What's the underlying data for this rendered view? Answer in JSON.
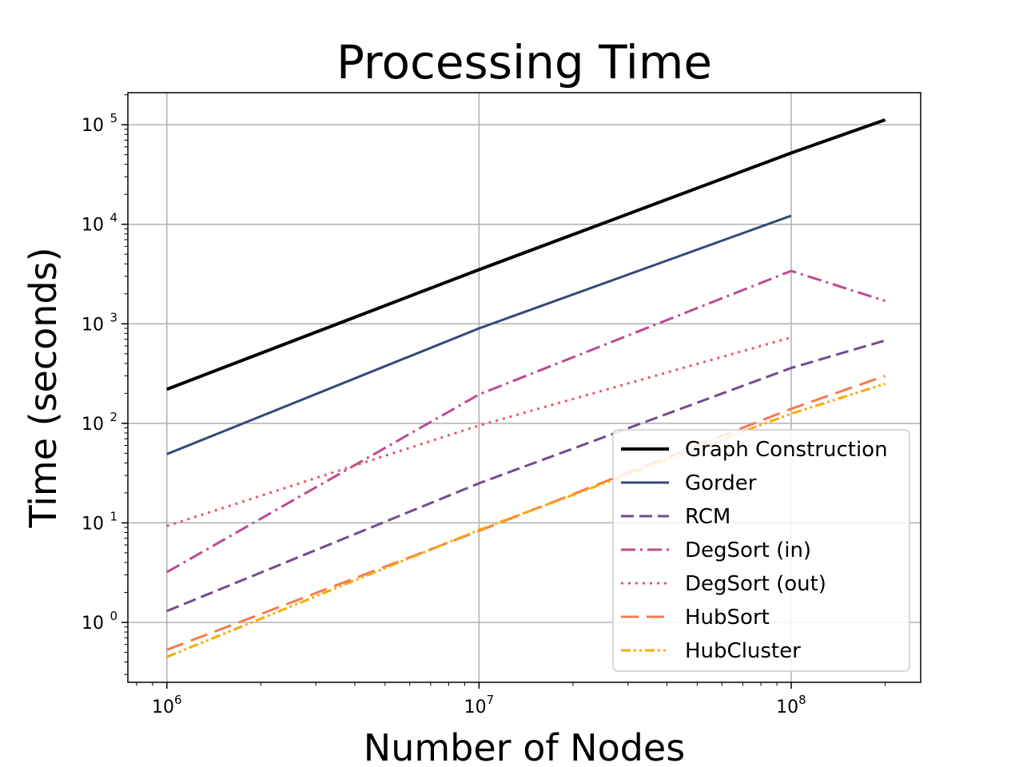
{
  "chart_data": {
    "type": "line",
    "title": "Processing Time",
    "xlabel": "Number of Nodes",
    "ylabel": "Time (seconds)",
    "xscale": "log",
    "yscale": "log",
    "xlim": [
      750000,
      260000000
    ],
    "ylim": [
      0.25,
      210000
    ],
    "grid": true,
    "legend_position": "lower-right",
    "x_ticks": [
      {
        "base": "10",
        "exp": "6",
        "value": 1000000
      },
      {
        "base": "10",
        "exp": "7",
        "value": 10000000
      },
      {
        "base": "10",
        "exp": "8",
        "value": 100000000
      }
    ],
    "y_ticks": [
      {
        "base": "10",
        "exp": "0",
        "value": 1
      },
      {
        "base": "10",
        "exp": "1",
        "value": 10
      },
      {
        "base": "10",
        "exp": "2",
        "value": 100
      },
      {
        "base": "10",
        "exp": "3",
        "value": 1000
      },
      {
        "base": "10",
        "exp": "4",
        "value": 10000
      },
      {
        "base": "10",
        "exp": "5",
        "value": 100000
      }
    ],
    "series": [
      {
        "name": "Graph Construction",
        "color": "#000000",
        "dash": "solid",
        "width": 4,
        "x": [
          1000000,
          10000000,
          100000000,
          200000000
        ],
        "y": [
          220,
          3500,
          52000,
          112000
        ]
      },
      {
        "name": "Gorder",
        "color": "#33477a",
        "dash": "solid",
        "width": 3,
        "x": [
          1000000,
          10000000,
          100000000
        ],
        "y": [
          49,
          900,
          12200
        ]
      },
      {
        "name": "RCM",
        "color": "#734b8f",
        "dash": "16,7",
        "width": 3,
        "x": [
          1000000,
          10000000,
          100000000,
          200000000
        ],
        "y": [
          1.3,
          25,
          360,
          680
        ]
      },
      {
        "name": "DegSort (in)",
        "color": "#bd4a8f",
        "dash": "18,6,3,6",
        "width": 3,
        "x": [
          1000000,
          10000000,
          100000000,
          200000000
        ],
        "y": [
          3.2,
          195,
          3400,
          1700
        ]
      },
      {
        "name": "DegSort (out)",
        "color": "#eb5469",
        "dash": "3,6",
        "width": 3,
        "x": [
          1000000,
          10000000,
          100000000
        ],
        "y": [
          9.3,
          95,
          730
        ]
      },
      {
        "name": "HubSort",
        "color": "#f7794f",
        "dash": "22,10",
        "width": 3,
        "x": [
          1000000,
          10000000,
          100000000,
          200000000
        ],
        "y": [
          0.53,
          8.3,
          140,
          300
        ]
      },
      {
        "name": "HubCluster",
        "color": "#fca800",
        "dash": "12,4,3,4,3,4",
        "width": 3,
        "x": [
          1000000,
          10000000,
          100000000,
          200000000
        ],
        "y": [
          0.45,
          8.5,
          125,
          250
        ]
      }
    ]
  }
}
